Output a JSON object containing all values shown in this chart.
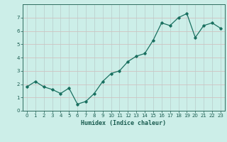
{
  "x": [
    0,
    1,
    2,
    3,
    4,
    5,
    6,
    7,
    8,
    9,
    10,
    11,
    12,
    13,
    14,
    15,
    16,
    17,
    18,
    19,
    20,
    21,
    22,
    23
  ],
  "y": [
    1.8,
    2.2,
    1.8,
    1.6,
    1.3,
    1.7,
    0.5,
    0.7,
    1.3,
    2.2,
    2.8,
    3.0,
    3.7,
    4.1,
    4.3,
    5.3,
    6.6,
    6.4,
    7.0,
    7.3,
    5.5,
    6.4,
    6.6,
    6.2
  ],
  "xlabel": "Humidex (Indice chaleur)",
  "line_color": "#1a7060",
  "marker": "D",
  "marker_size": 1.8,
  "linewidth": 0.9,
  "background_color": "#cceee8",
  "grid_color_h": "#d4b8b8",
  "grid_color_v": "#b8ccca",
  "axis_color": "#2e6b5e",
  "tick_label_color": "#1a5c50",
  "xlabel_color": "#1a5c50",
  "xlim": [
    -0.5,
    23.5
  ],
  "ylim": [
    0,
    8
  ],
  "yticks": [
    0,
    1,
    2,
    3,
    4,
    5,
    6,
    7
  ],
  "xticks": [
    0,
    1,
    2,
    3,
    4,
    5,
    6,
    7,
    8,
    9,
    10,
    11,
    12,
    13,
    14,
    15,
    16,
    17,
    18,
    19,
    20,
    21,
    22,
    23
  ]
}
